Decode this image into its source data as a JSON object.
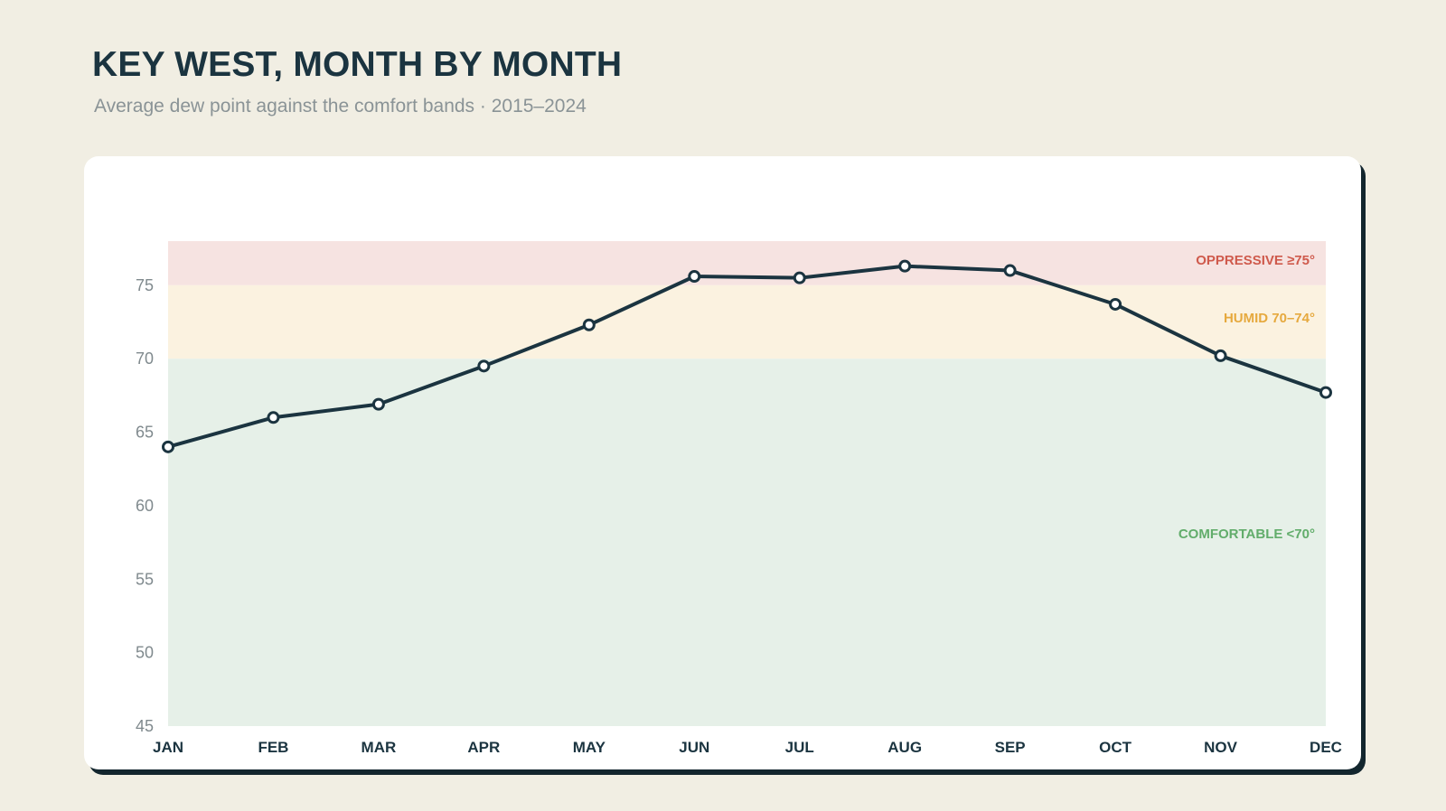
{
  "header": {
    "title": "KEY WEST, MONTH BY MONTH",
    "subtitle": "Average dew point against the comfort bands · 2015–2024"
  },
  "colors": {
    "line": "#1b3440",
    "marker_fill": "#ffffff",
    "band_oppressive_fill": "#f6e3e1",
    "band_humid_fill": "#fbf2e0",
    "band_comfortable_fill": "#e6f0e8",
    "band_oppressive_text": "#cf5a4c",
    "band_humid_text": "#e6a93e",
    "band_comfortable_text": "#62ad6b"
  },
  "chart_data": {
    "type": "line",
    "title": "KEY WEST, MONTH BY MONTH",
    "subtitle": "Average dew point against the comfort bands · 2015–2024",
    "categories": [
      "JAN",
      "FEB",
      "MAR",
      "APR",
      "MAY",
      "JUN",
      "JUL",
      "AUG",
      "SEP",
      "OCT",
      "NOV",
      "DEC"
    ],
    "series": [
      {
        "values": [
          64.0,
          66.0,
          66.9,
          69.5,
          72.3,
          75.6,
          75.5,
          76.3,
          76.0,
          73.7,
          70.2,
          67.7
        ]
      }
    ],
    "ylim": [
      45,
      78
    ],
    "yticks": [
      45,
      50,
      55,
      60,
      65,
      70,
      75
    ],
    "grid": false,
    "bands": [
      {
        "label": "OPPRESSIVE ≥75°",
        "from": 75,
        "to": 78,
        "key": "oppressive"
      },
      {
        "label": "HUMID 70–74°",
        "from": 70,
        "to": 75,
        "key": "humid"
      },
      {
        "label": "COMFORTABLE <70°",
        "from": 45,
        "to": 70,
        "key": "comfortable"
      }
    ]
  }
}
